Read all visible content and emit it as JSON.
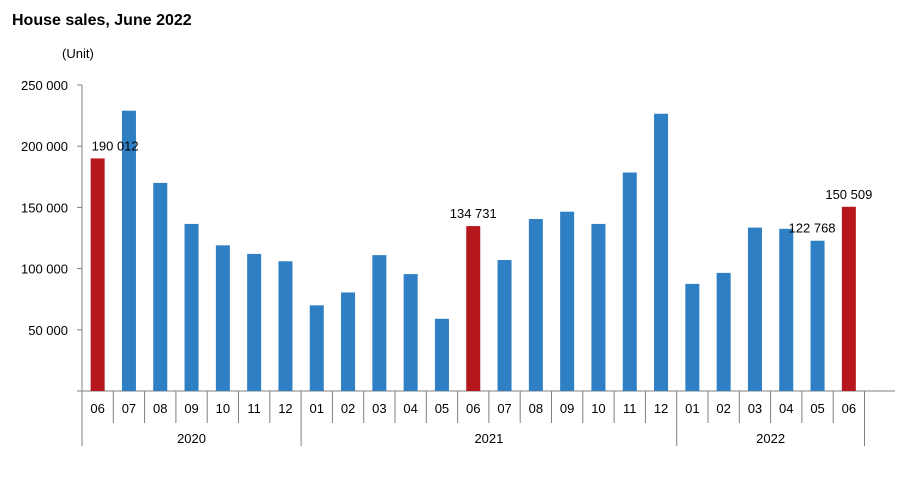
{
  "chart_data": {
    "type": "bar",
    "title": "House sales, June 2022",
    "unit_label": "(Unit)",
    "ylim": [
      0,
      250000
    ],
    "y_ticks": [
      "250 000",
      "200 000",
      "150 000",
      "100 000",
      "50 000"
    ],
    "y_tick_values": [
      250000,
      200000,
      150000,
      100000,
      50000
    ],
    "grid": false,
    "colors": {
      "regular": "#2e7fc4",
      "highlight": "#b5171d"
    },
    "categories": [
      "06",
      "07",
      "08",
      "09",
      "10",
      "11",
      "12",
      "01",
      "02",
      "03",
      "04",
      "05",
      "06",
      "07",
      "08",
      "09",
      "10",
      "11",
      "12",
      "01",
      "02",
      "03",
      "04",
      "05",
      "06"
    ],
    "years": [
      {
        "label": "2020",
        "start": 0,
        "end": 6
      },
      {
        "label": "2021",
        "start": 7,
        "end": 18
      },
      {
        "label": "2022",
        "start": 19,
        "end": 24
      }
    ],
    "values": [
      190012,
      229000,
      170000,
      136500,
      119000,
      112000,
      106000,
      70000,
      80500,
      111000,
      95500,
      59000,
      134731,
      107000,
      140500,
      146500,
      136500,
      178500,
      226500,
      87500,
      96500,
      133500,
      132500,
      122768,
      150509
    ],
    "highlight": [
      0,
      12,
      24
    ],
    "data_labels": [
      {
        "index": 0,
        "text": "190 012"
      },
      {
        "index": 12,
        "text": "134 731"
      },
      {
        "index": 23,
        "text": "122 768"
      },
      {
        "index": 24,
        "text": "150 509"
      }
    ]
  }
}
